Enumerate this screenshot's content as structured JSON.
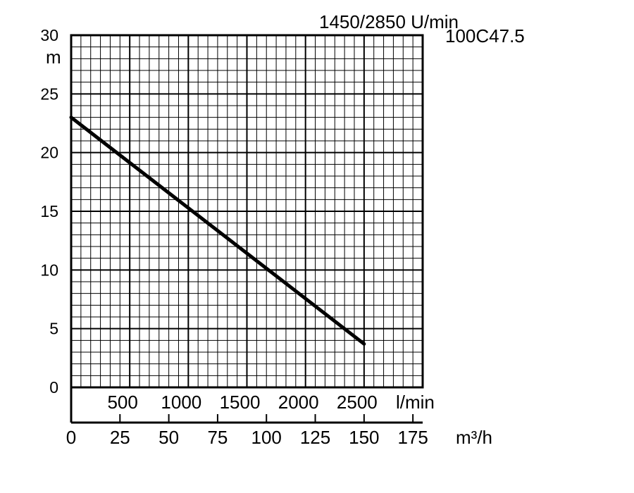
{
  "chart_data": {
    "type": "line",
    "title": "1450/2850 U/min",
    "model": "100C47.5",
    "ylabel": "m",
    "ylim": [
      0,
      30
    ],
    "y_ticks": [
      "0",
      "5",
      "10",
      "15",
      "20",
      "25",
      "30"
    ],
    "xlim_m3h": [
      0,
      180
    ],
    "x_ticks_m3h": [
      "0",
      "25",
      "50",
      "75",
      "100",
      "125",
      "150",
      "175"
    ],
    "xlabel_m3h": "m³/h",
    "x_ticks_lmin": [
      "500",
      "1000",
      "1500",
      "2000",
      "2500"
    ],
    "xlabel_lmin": "l/min",
    "grid": true,
    "series": [
      {
        "x": [
          0,
          150
        ],
        "y": [
          23,
          3.7
        ]
      }
    ]
  }
}
